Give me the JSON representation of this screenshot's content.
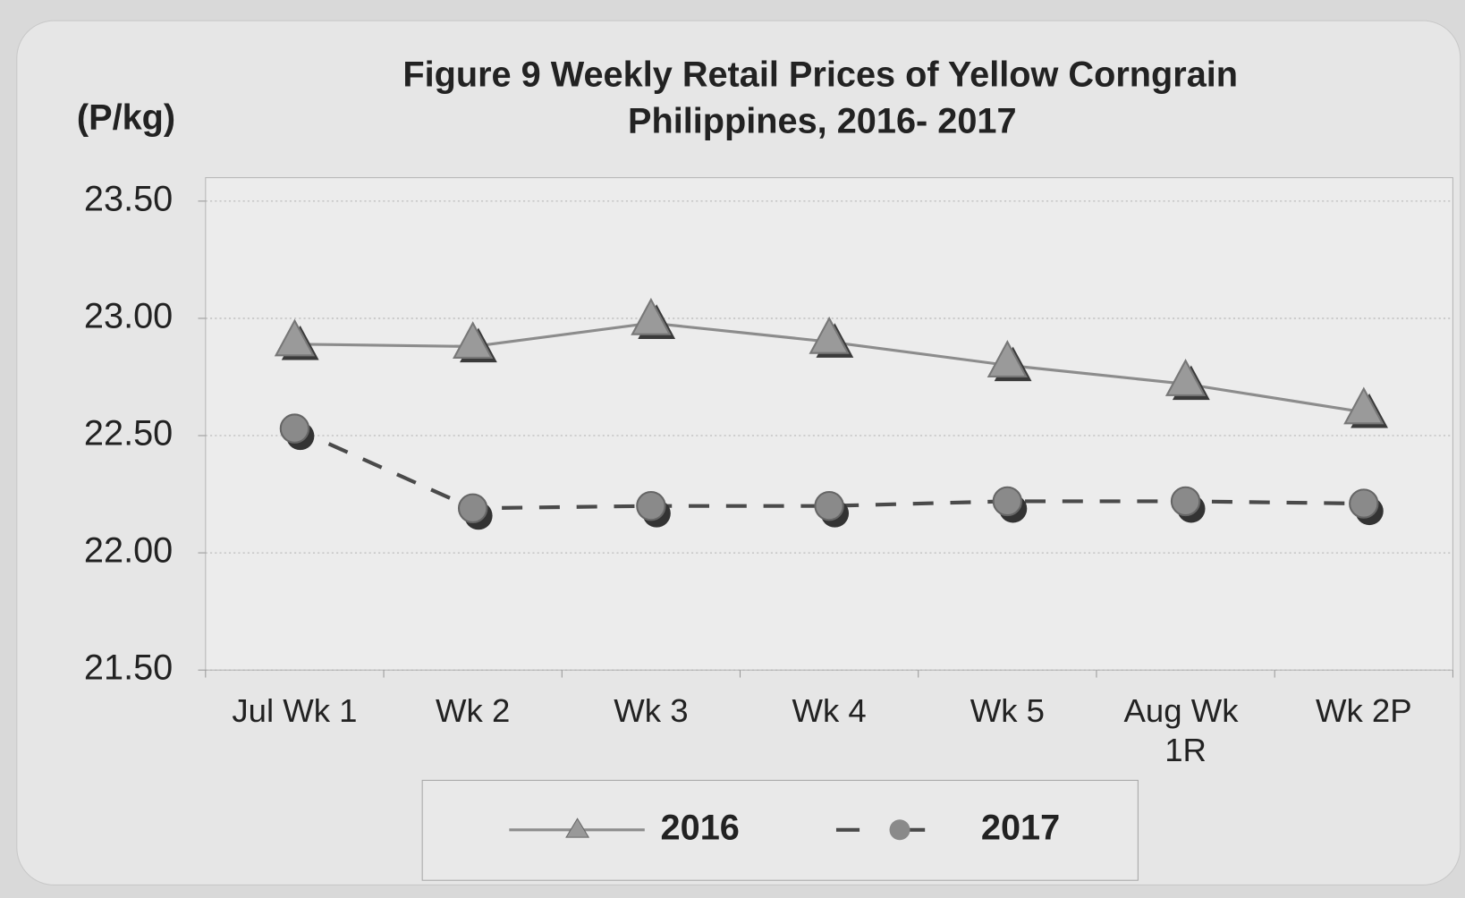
{
  "chart_data": {
    "type": "line",
    "title": "Figure 9  Weekly Retail Prices of Yellow Corngrain",
    "subtitle": "Philippines, 2016- 2017",
    "ylabel": "(P/kg)",
    "categories": [
      "Jul Wk 1",
      "Wk 2",
      "Wk 3",
      "Wk 4",
      "Wk 5",
      "Aug Wk 1R",
      "Wk 2P"
    ],
    "series": [
      {
        "name": "2016",
        "color": "#8c8c8c",
        "values": [
          22.89,
          22.88,
          22.98,
          22.9,
          22.8,
          22.72,
          22.6
        ]
      },
      {
        "name": "2017",
        "color": "#4a4a4a",
        "values": [
          22.53,
          22.19,
          22.2,
          22.2,
          22.22,
          22.22,
          22.21
        ]
      }
    ],
    "ylim": [
      21.5,
      23.6
    ],
    "yticks": [
      {
        "value": 21.5,
        "label": "21.50"
      },
      {
        "value": 22,
        "label": "22.00"
      },
      {
        "value": 22.5,
        "label": "22.50"
      },
      {
        "value": 23,
        "label": "23.00"
      },
      {
        "value": 23.5,
        "label": "23.50"
      }
    ],
    "grid": true
  }
}
